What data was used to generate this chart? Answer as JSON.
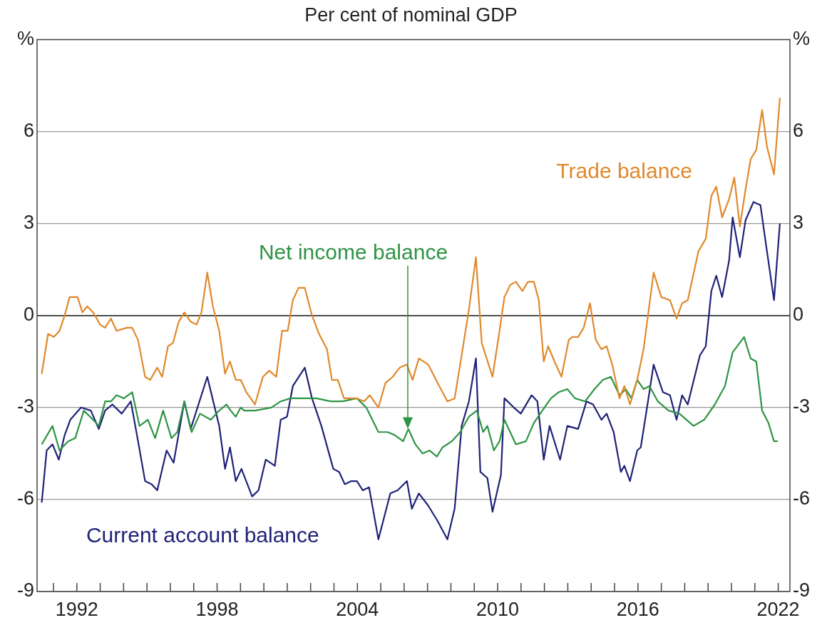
{
  "chart_data": {
    "type": "line",
    "title": "Per cent of nominal GDP",
    "xlim": [
      1990.3,
      2022.5
    ],
    "xticks": [
      {
        "value": 1991,
        "label": null
      },
      {
        "value": 1992,
        "label": "1992"
      },
      {
        "value": 1993,
        "label": null
      },
      {
        "value": 1994,
        "label": null
      },
      {
        "value": 1995,
        "label": null
      },
      {
        "value": 1996,
        "label": null
      },
      {
        "value": 1997,
        "label": null
      },
      {
        "value": 1998,
        "label": "1998"
      },
      {
        "value": 1999,
        "label": null
      },
      {
        "value": 2000,
        "label": null
      },
      {
        "value": 2001,
        "label": null
      },
      {
        "value": 2002,
        "label": null
      },
      {
        "value": 2003,
        "label": null
      },
      {
        "value": 2004,
        "label": "2004"
      },
      {
        "value": 2005,
        "label": null
      },
      {
        "value": 2006,
        "label": null
      },
      {
        "value": 2007,
        "label": null
      },
      {
        "value": 2008,
        "label": null
      },
      {
        "value": 2009,
        "label": null
      },
      {
        "value": 2010,
        "label": "2010"
      },
      {
        "value": 2011,
        "label": null
      },
      {
        "value": 2012,
        "label": null
      },
      {
        "value": 2013,
        "label": null
      },
      {
        "value": 2014,
        "label": null
      },
      {
        "value": 2015,
        "label": null
      },
      {
        "value": 2016,
        "label": "2016"
      },
      {
        "value": 2017,
        "label": null
      },
      {
        "value": 2018,
        "label": null
      },
      {
        "value": 2019,
        "label": null
      },
      {
        "value": 2020,
        "label": null
      },
      {
        "value": 2021,
        "label": null
      },
      {
        "value": 2022,
        "label": "2022"
      }
    ],
    "ylim": [
      -9,
      9
    ],
    "yticks": [
      -9,
      -6,
      -3,
      0,
      3,
      6,
      {
        "value": 9,
        "label": "%"
      }
    ],
    "y2lim": [
      -9,
      9
    ],
    "y2ticks": [
      -9,
      -6,
      -3,
      0,
      3,
      6,
      {
        "value": 9,
        "label": "%"
      }
    ],
    "grid": "y",
    "legend": false,
    "marker": "none",
    "line_style": "solid",
    "series": [
      {
        "name": "Trade balance",
        "color": "#e0892c",
        "x": [
          1990.5,
          1990.77,
          1991.02,
          1991.26,
          1991.48,
          1991.69,
          1992.03,
          1992.24,
          1992.45,
          1992.7,
          1993.0,
          1993.21,
          1993.46,
          1993.7,
          1994.13,
          1994.37,
          1994.62,
          1994.92,
          1995.14,
          1995.44,
          1995.65,
          1995.9,
          1996.11,
          1996.36,
          1996.6,
          1996.87,
          1997.12,
          1997.33,
          1997.58,
          1997.82,
          1998.09,
          1998.34,
          1998.55,
          1998.8,
          1999.01,
          1999.25,
          1999.62,
          1999.96,
          2000.23,
          2000.53,
          2000.78,
          2001.02,
          2001.24,
          2001.48,
          2001.75,
          2002.06,
          2002.36,
          2002.7,
          2002.91,
          2003.16,
          2003.43,
          2003.68,
          2003.98,
          2004.29,
          2004.53,
          2004.9,
          2005.2,
          2005.51,
          2005.81,
          2006.12,
          2006.36,
          2006.63,
          2007.03,
          2007.43,
          2007.85,
          2008.16,
          2008.46,
          2008.77,
          2009.07,
          2009.32,
          2009.78,
          2010.08,
          2010.29,
          2010.54,
          2010.78,
          2011.06,
          2011.3,
          2011.55,
          2011.76,
          2011.97,
          2012.16,
          2012.43,
          2012.73,
          2013.04,
          2013.19,
          2013.44,
          2013.68,
          2013.95,
          2014.2,
          2014.44,
          2014.66,
          2014.9,
          2015.21,
          2015.42,
          2015.66,
          2015.97,
          2016.24,
          2016.43,
          2016.67,
          2017.0,
          2017.37,
          2017.65,
          2017.89,
          2018.13,
          2018.59,
          2018.9,
          2019.14,
          2019.35,
          2019.6,
          2019.9,
          2020.12,
          2020.36,
          2020.6,
          2020.82,
          2021.06,
          2021.31,
          2021.52,
          2021.82,
          2022.07
        ],
        "values": [
          -1.9,
          -0.6,
          -0.7,
          -0.5,
          0,
          0.6,
          0.6,
          0.1,
          0.3,
          0.1,
          -0.3,
          -0.4,
          -0.1,
          -0.5,
          -0.4,
          -0.4,
          -0.8,
          -2.0,
          -2.1,
          -1.7,
          -2.0,
          -1.0,
          -0.9,
          -0.2,
          0.1,
          -0.2,
          -0.3,
          0.1,
          1.4,
          0.3,
          -0.5,
          -1.9,
          -1.5,
          -2.1,
          -2.1,
          -2.5,
          -2.9,
          -2.0,
          -1.8,
          -2.0,
          -0.5,
          -0.5,
          0.5,
          0.9,
          0.9,
          0,
          -0.6,
          -1.1,
          -2.1,
          -2.1,
          -2.7,
          -2.7,
          -2.7,
          -2.8,
          -2.6,
          -3.0,
          -2.2,
          -2.0,
          -1.7,
          -1.6,
          -2.1,
          -1.4,
          -1.6,
          -2.2,
          -2.8,
          -2.7,
          -1.3,
          0.2,
          1.9,
          -0.9,
          -2.0,
          -0.5,
          0.6,
          1.0,
          1.1,
          0.8,
          1.1,
          1.1,
          0.5,
          -1.5,
          -1.0,
          -1.5,
          -2.0,
          -0.8,
          -0.7,
          -0.7,
          -0.4,
          0.4,
          -0.8,
          -1.1,
          -1.0,
          -1.6,
          -2.7,
          -2.3,
          -2.9,
          -2.1,
          -1.1,
          0.0,
          1.4,
          0.6,
          0.5,
          -0.1,
          0.4,
          0.5,
          2.1,
          2.5,
          3.9,
          4.2,
          3.2,
          3.8,
          4.5,
          2.9,
          4.1,
          5.1,
          5.4,
          6.7,
          5.5,
          4.6,
          7.1
        ]
      },
      {
        "name": "Net income balance",
        "color": "#2e9444",
        "x": [
          1990.5,
          1990.96,
          1991.26,
          1991.63,
          1991.93,
          1992.3,
          1992.7,
          1992.94,
          1993.21,
          1993.46,
          1993.7,
          1994.01,
          1994.37,
          1994.68,
          1995.04,
          1995.35,
          1995.69,
          1996.05,
          1996.3,
          1996.6,
          1996.91,
          1997.27,
          1997.73,
          1998.09,
          1998.4,
          1998.58,
          1998.8,
          1999.01,
          1999.16,
          1999.62,
          2000.32,
          2000.72,
          2001.14,
          2001.54,
          2002.24,
          2002.85,
          2003.37,
          2003.98,
          2004.38,
          2004.9,
          2005.29,
          2005.6,
          2005.96,
          2006.18,
          2006.48,
          2006.79,
          2007.09,
          2007.4,
          2007.64,
          2008.04,
          2008.4,
          2008.77,
          2009.11,
          2009.38,
          2009.56,
          2009.84,
          2010.08,
          2010.29,
          2010.78,
          2011.21,
          2011.55,
          2011.91,
          2012.28,
          2012.61,
          2012.98,
          2013.31,
          2013.74,
          2014.14,
          2014.5,
          2014.84,
          2015.21,
          2015.48,
          2015.72,
          2015.97,
          2016.24,
          2016.49,
          2016.85,
          2017.31,
          2017.77,
          2018.38,
          2018.83,
          2019.29,
          2019.72,
          2020.05,
          2020.54,
          2020.82,
          2021.06,
          2021.31,
          2021.58,
          2021.82,
          2021.98
        ],
        "values": [
          -4.2,
          -3.6,
          -4.4,
          -4.1,
          -4.0,
          -3.1,
          -3.4,
          -3.6,
          -2.8,
          -2.8,
          -2.6,
          -2.7,
          -2.5,
          -3.6,
          -3.4,
          -4.0,
          -3.1,
          -4.0,
          -3.8,
          -2.8,
          -3.8,
          -3.2,
          -3.4,
          -3.1,
          -2.9,
          -3.1,
          -3.3,
          -3.0,
          -3.1,
          -3.1,
          -3.0,
          -2.8,
          -2.7,
          -2.7,
          -2.7,
          -2.8,
          -2.8,
          -2.7,
          -3.0,
          -3.8,
          -3.8,
          -3.9,
          -4.1,
          -3.7,
          -4.2,
          -4.5,
          -4.4,
          -4.6,
          -4.3,
          -4.1,
          -3.8,
          -3.3,
          -3.1,
          -3.8,
          -3.6,
          -4.4,
          -4.1,
          -3.4,
          -4.2,
          -4.1,
          -3.5,
          -3.1,
          -2.7,
          -2.5,
          -2.4,
          -2.7,
          -2.8,
          -2.4,
          -2.1,
          -2.0,
          -2.6,
          -2.4,
          -2.7,
          -2.1,
          -2.4,
          -2.3,
          -2.8,
          -3.1,
          -3.2,
          -3.6,
          -3.4,
          -2.9,
          -2.3,
          -1.2,
          -0.7,
          -1.4,
          -1.5,
          -3.1,
          -3.5,
          -4.1,
          -4.1
        ]
      },
      {
        "name": "Current account balance",
        "color": "#1f2277",
        "x": [
          1990.5,
          1990.71,
          1990.96,
          1991.23,
          1991.48,
          1991.72,
          1992.18,
          1992.6,
          1992.94,
          1993.21,
          1993.52,
          1993.92,
          1994.31,
          1994.62,
          1994.92,
          1995.2,
          1995.44,
          1995.84,
          1996.14,
          1996.6,
          1996.87,
          1997.58,
          1998.09,
          1998.34,
          1998.55,
          1998.8,
          1999.04,
          1999.5,
          1999.77,
          2000.08,
          2000.47,
          2000.72,
          2000.99,
          2001.24,
          2001.75,
          2002.06,
          2002.46,
          2002.97,
          2003.22,
          2003.46,
          2003.74,
          2003.98,
          2004.23,
          2004.5,
          2004.9,
          2005.41,
          2005.72,
          2006.12,
          2006.33,
          2006.63,
          2007.03,
          2007.43,
          2007.85,
          2008.16,
          2008.46,
          2008.77,
          2009.07,
          2009.26,
          2009.56,
          2009.78,
          2010.14,
          2010.29,
          2010.69,
          2010.99,
          2011.45,
          2011.7,
          2011.97,
          2012.22,
          2012.67,
          2012.98,
          2013.44,
          2013.8,
          2014.08,
          2014.44,
          2014.66,
          2014.96,
          2015.27,
          2015.42,
          2015.66,
          2015.97,
          2016.12,
          2016.43,
          2016.67,
          2017.07,
          2017.37,
          2017.65,
          2017.89,
          2018.13,
          2018.65,
          2018.9,
          2019.14,
          2019.35,
          2019.6,
          2019.9,
          2020.05,
          2020.36,
          2020.6,
          2020.94,
          2021.24,
          2021.46,
          2021.82,
          2022.07
        ],
        "values": [
          -6.1,
          -4.4,
          -4.2,
          -4.7,
          -3.9,
          -3.4,
          -3.0,
          -3.1,
          -3.7,
          -3.1,
          -2.9,
          -3.2,
          -2.8,
          -4.1,
          -5.4,
          -5.5,
          -5.7,
          -4.4,
          -4.8,
          -2.8,
          -3.7,
          -2.0,
          -3.6,
          -5.0,
          -4.3,
          -5.4,
          -5.0,
          -5.9,
          -5.7,
          -4.7,
          -4.9,
          -3.4,
          -3.3,
          -2.3,
          -1.7,
          -2.7,
          -3.6,
          -5.0,
          -5.1,
          -5.5,
          -5.4,
          -5.4,
          -5.7,
          -5.6,
          -7.3,
          -5.8,
          -5.7,
          -5.4,
          -6.3,
          -5.8,
          -6.2,
          -6.7,
          -7.3,
          -6.3,
          -3.6,
          -2.8,
          -1.4,
          -5.1,
          -5.3,
          -6.4,
          -5.2,
          -2.7,
          -3.0,
          -3.2,
          -2.6,
          -2.8,
          -4.7,
          -3.6,
          -4.7,
          -3.6,
          -3.7,
          -2.8,
          -2.9,
          -3.4,
          -3.2,
          -3.8,
          -5.1,
          -4.9,
          -5.4,
          -4.4,
          -4.3,
          -2.8,
          -1.6,
          -2.5,
          -2.6,
          -3.4,
          -2.6,
          -2.9,
          -1.3,
          -1.0,
          0.8,
          1.3,
          0.6,
          1.8,
          3.2,
          1.9,
          3.1,
          3.7,
          3.6,
          2.4,
          0.5,
          3.0
        ]
      }
    ]
  }
}
